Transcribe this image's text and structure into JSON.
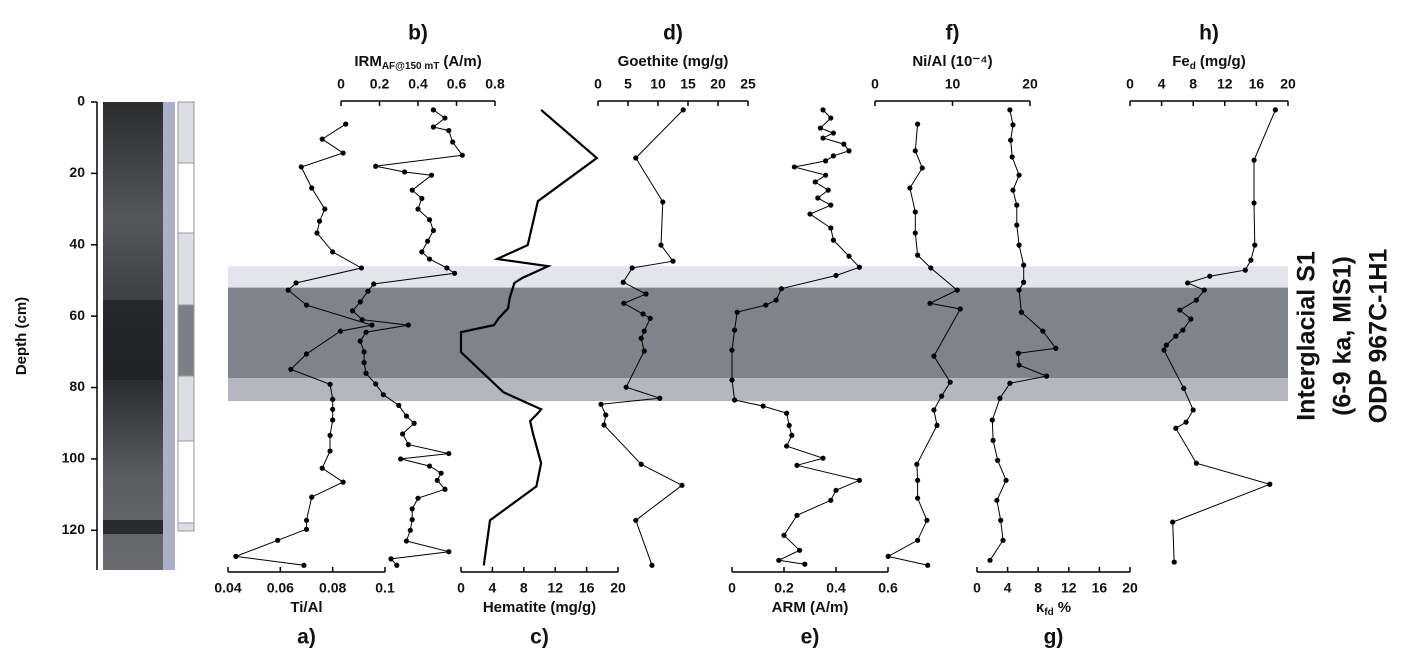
{
  "chart_data": {
    "type": "line",
    "ylabel": "Depth (cm)",
    "ylim": [
      0,
      130
    ],
    "yticks": [
      0,
      20,
      40,
      60,
      80,
      100,
      120
    ],
    "annotation": [
      "Interglacial S1",
      "(6-9 ka, MIS1)",
      "ODP 967C-1H1"
    ],
    "highlight_bands": [
      {
        "from": 46,
        "to": 52,
        "color": "#e4e5ec"
      },
      {
        "from": 52,
        "to": 77.4,
        "color": "#80838b"
      },
      {
        "from": 77.4,
        "to": 83.8,
        "color": "#b5b6c0"
      }
    ],
    "panels": [
      {
        "label": "a)",
        "xlabel": "Ti/Al",
        "axis": "bottom",
        "xlim": [
          0.04,
          0.1
        ],
        "xticks": [
          0.04,
          0.06,
          0.08,
          0.1
        ],
        "color": "#000000",
        "markers": true,
        "depth": [
          6.2,
          10.4,
          14.3,
          18.2,
          24.1,
          30,
          33.4,
          36.7,
          42,
          46.5,
          50.7,
          52.7,
          56.9,
          62.5,
          64.2,
          70.6,
          74.9,
          79.1,
          83.3,
          86.1,
          89.1,
          93.4,
          97.8,
          102.6,
          106.5,
          110.7,
          117.2,
          119.7,
          122.8,
          127.3,
          129.8
        ],
        "values": [
          0.085,
          0.076,
          0.084,
          0.068,
          0.072,
          0.077,
          0.075,
          0.074,
          0.08,
          0.091,
          0.066,
          0.063,
          0.07,
          0.095,
          0.083,
          0.07,
          0.064,
          0.079,
          0.08,
          0.08,
          0.08,
          0.079,
          0.079,
          0.076,
          0.084,
          0.072,
          0.07,
          0.07,
          0.059,
          0.043,
          0.069
        ]
      },
      {
        "label": "b)",
        "xlabel": {
          "main": "IRM",
          "sub": "AF@150 mT",
          "unit": "(A/m)"
        },
        "axis": "top",
        "xlim": [
          0,
          0.8
        ],
        "xticks": [
          0,
          0.2,
          0.4,
          0.6,
          0.8
        ],
        "color": "#000000",
        "markers": true,
        "depth": [
          2.2,
          4.5,
          7,
          8,
          11.2,
          14.9,
          18,
          19.6,
          20.5,
          24.7,
          27,
          30,
          33,
          36,
          39,
          42,
          44,
          46.5,
          48,
          51,
          53,
          56,
          58.5,
          61,
          62.5,
          64.5,
          67,
          70,
          73,
          76,
          79,
          82,
          85,
          88,
          90,
          93,
          96,
          98.5,
          100,
          102,
          104,
          106,
          108.5,
          111,
          114,
          117,
          120,
          123,
          126,
          128,
          129.8
        ],
        "values": [
          0.48,
          0.54,
          0.48,
          0.56,
          0.58,
          0.63,
          0.18,
          0.33,
          0.47,
          0.37,
          0.42,
          0.4,
          0.46,
          0.48,
          0.45,
          0.42,
          0.46,
          0.55,
          0.59,
          0.17,
          0.14,
          0.1,
          0.06,
          0.11,
          0.35,
          0.13,
          0.1,
          0.12,
          0.12,
          0.13,
          0.18,
          0.22,
          0.3,
          0.34,
          0.38,
          0.32,
          0.35,
          0.56,
          0.31,
          0.46,
          0.52,
          0.5,
          0.54,
          0.4,
          0.37,
          0.37,
          0.36,
          0.34,
          0.56,
          0.26,
          0.29
        ]
      },
      {
        "label": "c)",
        "xlabel": "Hematite (mg/g)",
        "axis": "bottom",
        "xlim": [
          0,
          20
        ],
        "xticks": [
          0,
          4,
          8,
          12,
          16,
          20
        ],
        "color": "#000000",
        "markers": false,
        "depth": [
          2.2,
          15.7,
          27.8,
          40.1,
          44,
          46,
          49.3,
          50.7,
          54.9,
          57.8,
          60.6,
          62.5,
          64.5,
          67.8,
          70.1,
          81.3,
          86.1,
          87.2,
          89.4,
          93.1,
          101.2,
          107.7,
          117.2,
          129.8
        ],
        "values": [
          10.2,
          17.3,
          9.8,
          8.5,
          4.6,
          11.1,
          7.8,
          6.8,
          6.2,
          6,
          4.8,
          4.2,
          0,
          0,
          0,
          5.4,
          10.2,
          9.8,
          8.8,
          9.2,
          10.2,
          9.6,
          3.7,
          2.9
        ]
      },
      {
        "label": "d)",
        "xlabel": "Goethite (mg/g)",
        "axis": "top",
        "xlim": [
          0,
          25
        ],
        "xticks": [
          0,
          5,
          10,
          15,
          20,
          25
        ],
        "color": "#000000",
        "markers": true,
        "depth": [
          2.2,
          15.7,
          28,
          40.1,
          44.6,
          46.5,
          50.5,
          53.8,
          56.4,
          59.4,
          60.6,
          64.2,
          66.2,
          69.8,
          79.9,
          83,
          84.7,
          87.7,
          90.5,
          101.5,
          107.4,
          117.2,
          129.8
        ],
        "values": [
          14.2,
          6.3,
          10.8,
          10.5,
          12.5,
          5.7,
          4.2,
          8,
          4.3,
          7.5,
          8.7,
          7.7,
          7.2,
          7.7,
          4.7,
          10.3,
          0.5,
          1.3,
          1,
          7.2,
          14,
          6.3,
          9
        ]
      },
      {
        "label": "e)",
        "xlabel": "ARM (A/m)",
        "axis": "bottom",
        "xlim": [
          0,
          0.6
        ],
        "xticks": [
          0,
          0.2,
          0.4,
          0.6
        ],
        "color": "#000000",
        "markers": true,
        "depth": [
          2.2,
          4.5,
          7.3,
          8.7,
          10.1,
          11.8,
          13.7,
          15.1,
          16.5,
          18.2,
          20.5,
          22.4,
          24.7,
          26.9,
          28.9,
          31.4,
          35.3,
          38.7,
          43.2,
          46.3,
          48.6,
          52.3,
          55.5,
          56.9,
          58.9,
          63.9,
          69.5,
          77.9,
          83.5,
          85.2,
          87.2,
          90.6,
          93.4,
          96.4,
          99.8,
          101.8,
          106,
          108.8,
          111.6,
          115.8,
          121.4,
          125.6,
          128.4,
          129.5
        ],
        "values": [
          0.35,
          0.38,
          0.34,
          0.39,
          0.35,
          0.43,
          0.45,
          0.39,
          0.36,
          0.24,
          0.36,
          0.32,
          0.37,
          0.33,
          0.38,
          0.3,
          0.38,
          0.39,
          0.45,
          0.49,
          0.4,
          0.19,
          0.17,
          0.13,
          0.02,
          0.01,
          0,
          0,
          0.01,
          0.12,
          0.21,
          0.22,
          0.23,
          0.21,
          0.35,
          0.25,
          0.49,
          0.4,
          0.38,
          0.25,
          0.2,
          0.26,
          0.18,
          0.28
        ]
      },
      {
        "label": "f)",
        "xlabel": "Ni/Al (10⁻⁴)",
        "axis": "top",
        "xlim": [
          0,
          20
        ],
        "xticks": [
          0,
          10,
          20
        ],
        "color": "#000000",
        "markers": true,
        "depth": [
          6.2,
          13.7,
          18.5,
          24.1,
          30.8,
          36.7,
          42.9,
          46.5,
          52.7,
          56.4,
          58,
          71.2,
          78.5,
          82.4,
          86.3,
          90.6,
          101.5,
          106,
          111,
          117.2,
          122.8,
          127.3,
          129.8
        ],
        "values": [
          5.5,
          5.2,
          6.1,
          4.5,
          5.2,
          5.2,
          5.5,
          7.2,
          10.6,
          7.1,
          11,
          7.6,
          9.7,
          8.6,
          7.6,
          8,
          5.4,
          5.5,
          5.5,
          6.7,
          5.5,
          1.7,
          6.8
        ]
      },
      {
        "label": "g)",
        "xlabel": {
          "main": "κ",
          "sub": "fd",
          "unit": "%"
        },
        "axis": "bottom",
        "xlim": [
          0,
          20
        ],
        "xticks": [
          0,
          4,
          8,
          12,
          16,
          20
        ],
        "color": "#000000",
        "markers": true,
        "depth": [
          2.2,
          6.4,
          10.7,
          15.4,
          20.5,
          24.7,
          28.9,
          34.5,
          40.1,
          45.7,
          50.5,
          52.7,
          58.9,
          64.2,
          69,
          70.4,
          73.7,
          76.8,
          78.8,
          83,
          89.1,
          94.8,
          100.4,
          106,
          111.6,
          117.2,
          122.8,
          128.4
        ],
        "values": [
          4.3,
          4.7,
          4.4,
          4.6,
          5.5,
          4.7,
          5.2,
          5.2,
          5.5,
          6.1,
          6.1,
          5.5,
          5.8,
          8.6,
          10.3,
          5.4,
          5.5,
          9.1,
          4.3,
          3,
          2,
          2.1,
          2.7,
          3.8,
          2.6,
          3.1,
          3.4,
          1.7
        ]
      },
      {
        "label": "h)",
        "xlabel": {
          "main": "Fe",
          "sub": "d",
          "unit": "(mg/g)"
        },
        "axis": "top",
        "xlim": [
          0,
          20
        ],
        "xticks": [
          0,
          4,
          8,
          12,
          16,
          20
        ],
        "color": "#000000",
        "markers": true,
        "depth": [
          2.2,
          16.3,
          28.3,
          40.1,
          44.3,
          47.1,
          48.8,
          50.7,
          52.7,
          55.5,
          58.3,
          60.8,
          63.9,
          65.6,
          68.1,
          69.5,
          80.2,
          86.3,
          89.7,
          91.4,
          101.2,
          107.1,
          117.7,
          128.9
        ],
        "values": [
          18.4,
          15.7,
          15.7,
          15.8,
          15.3,
          14.6,
          10.1,
          7.3,
          9.4,
          8.4,
          6.3,
          7.7,
          6.7,
          5.8,
          4.6,
          4.3,
          6.8,
          8,
          7.1,
          5.8,
          8.4,
          17.7,
          5.4,
          5.6
        ]
      }
    ]
  }
}
